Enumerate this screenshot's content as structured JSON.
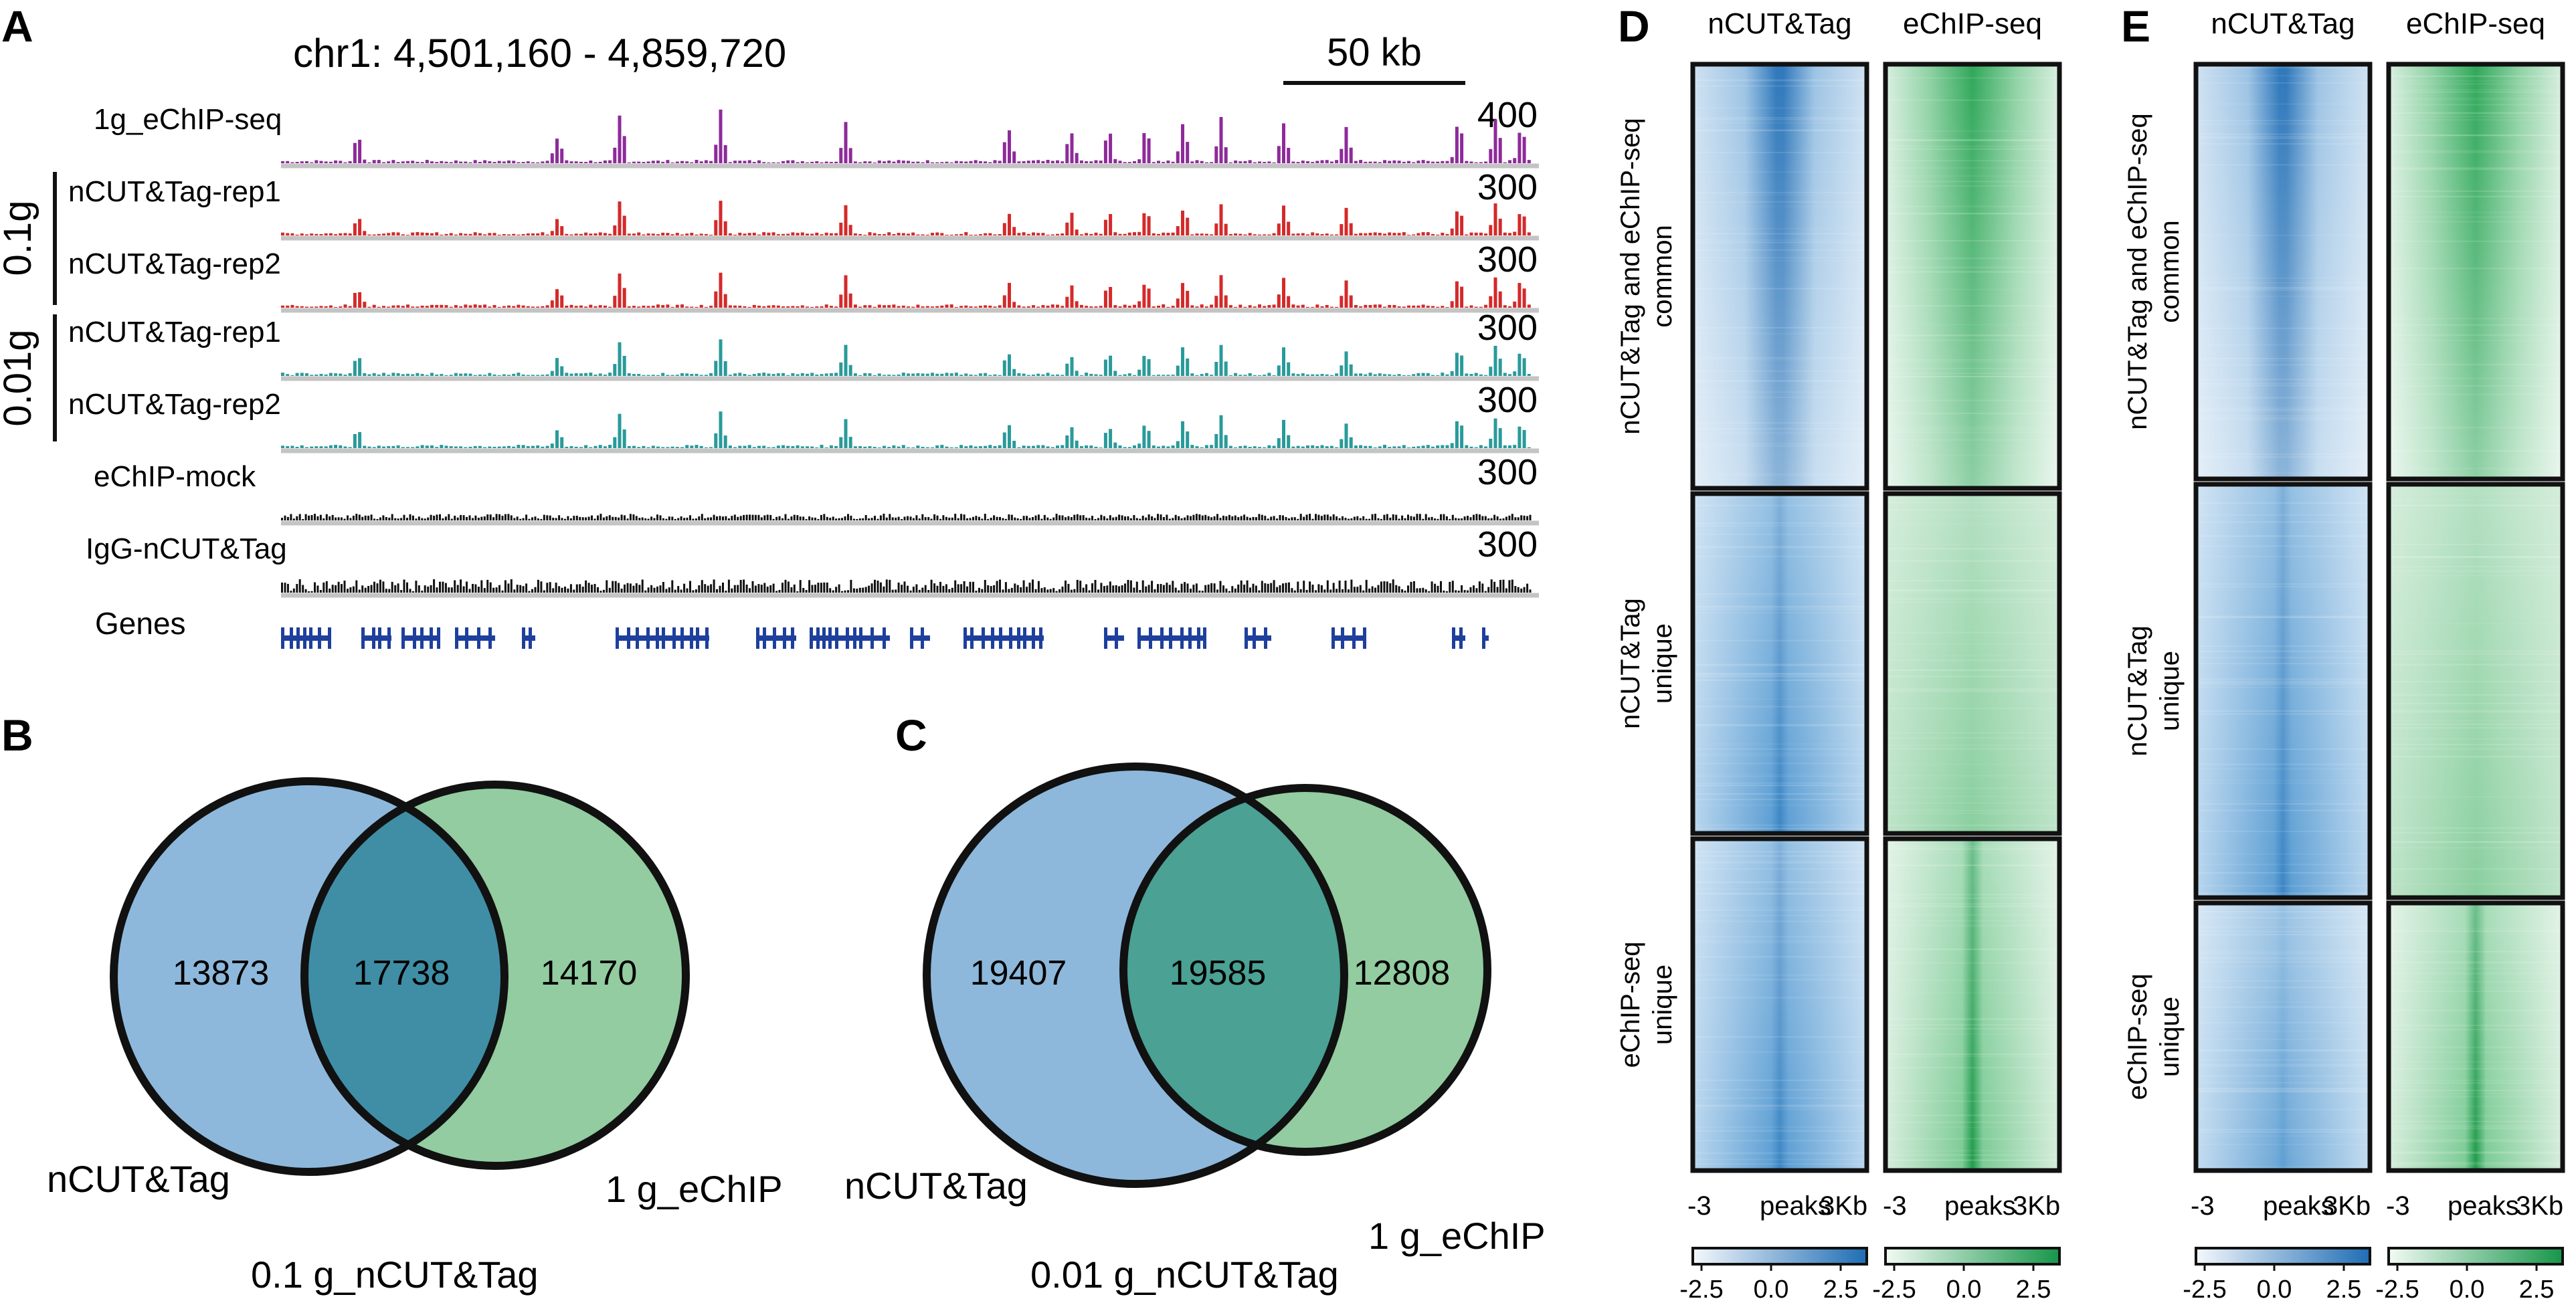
{
  "panel_letters": {
    "a": "A",
    "b": "B",
    "c": "C",
    "d": "D",
    "e": "E"
  },
  "colors": {
    "purple": "#8e2a9a",
    "red": "#d42a2a",
    "teal": "#2a9a9a",
    "black": "#111111",
    "gene": "#1e3f9c",
    "blue": "#2a74b8",
    "green": "#23a050",
    "venn_blue": "#8db8dc",
    "venn_green": "#92cca0",
    "venn_overlap_b": "#3f8ea6",
    "venn_overlap_c": "#4aa194"
  },
  "panel_a": {
    "region": "chr1: 4,501,160 - 4,859,720",
    "scalebar_label": "50 kb",
    "group_labels": {
      "g1": "0.1g",
      "g2": "0.01g"
    },
    "tracks": [
      {
        "label": "1g_eChIP-seq",
        "scale": "400",
        "color_key": "purple"
      },
      {
        "label": "nCUT&Tag-rep1",
        "scale": "300",
        "color_key": "red"
      },
      {
        "label": "nCUT&Tag-rep2",
        "scale": "300",
        "color_key": "red"
      },
      {
        "label": "nCUT&Tag-rep1",
        "scale": "300",
        "color_key": "teal"
      },
      {
        "label": "nCUT&Tag-rep2",
        "scale": "300",
        "color_key": "teal"
      },
      {
        "label": "eChIP-mock",
        "scale": "300",
        "color_key": "black"
      },
      {
        "label": "IgG-nCUT&Tag",
        "scale": "300",
        "color_key": "black"
      }
    ],
    "genes_label": "Genes"
  },
  "panel_b": {
    "left_only": "13873",
    "overlap": "17738",
    "right_only": "14170",
    "left_label": "nCUT&Tag",
    "right_label": "1 g_eChIP",
    "caption": "0.1 g_nCUT&Tag"
  },
  "panel_c": {
    "left_only": "19407",
    "overlap": "19585",
    "right_only": "12808",
    "left_label": "nCUT&Tag",
    "right_label": "1 g_eChIP",
    "caption": "0.01 g_nCUT&Tag"
  },
  "heatmap": {
    "col_titles": [
      "nCUT&Tag",
      "eChIP-seq"
    ],
    "cluster_labels": [
      [
        "nCUT&Tag and eChIP-seq",
        "common"
      ],
      [
        "nCUT&Tag",
        "unique"
      ],
      [
        "eChIP-seq",
        "unique"
      ]
    ],
    "axis": {
      "left": "-3",
      "mid": "peaks",
      "right": "3Kb"
    },
    "colorbar_ticks": [
      "-2.5",
      "0.0",
      "2.5"
    ]
  },
  "chart_data": [
    {
      "type": "venn",
      "title": "0.1 g_nCUT&Tag",
      "sets": [
        "nCUT&Tag",
        "1 g_eChIP"
      ],
      "values": {
        "nCUT&Tag only": 13873,
        "overlap": 17738,
        "1 g_eChIP only": 14170
      }
    },
    {
      "type": "venn",
      "title": "0.01 g_nCUT&Tag",
      "sets": [
        "nCUT&Tag",
        "1 g_eChIP"
      ],
      "values": {
        "nCUT&Tag only": 19407,
        "overlap": 19585,
        "1 g_eChIP only": 12808
      }
    },
    {
      "type": "heatmap",
      "panel": "D",
      "columns": [
        "nCUT&Tag",
        "eChIP-seq"
      ],
      "clusters": [
        "nCUT&Tag and eChIP-seq common",
        "nCUT&Tag unique",
        "eChIP-seq unique"
      ],
      "x_ticks": [
        "-3",
        "peaks",
        "3Kb"
      ],
      "color_range": [
        -2.5,
        2.5
      ]
    },
    {
      "type": "heatmap",
      "panel": "E",
      "columns": [
        "nCUT&Tag",
        "eChIP-seq"
      ],
      "clusters": [
        "nCUT&Tag and eChIP-seq common",
        "nCUT&Tag unique",
        "eChIP-seq unique"
      ],
      "x_ticks": [
        "-3",
        "peaks",
        "3Kb"
      ],
      "color_range": [
        -2.5,
        2.5
      ]
    }
  ]
}
